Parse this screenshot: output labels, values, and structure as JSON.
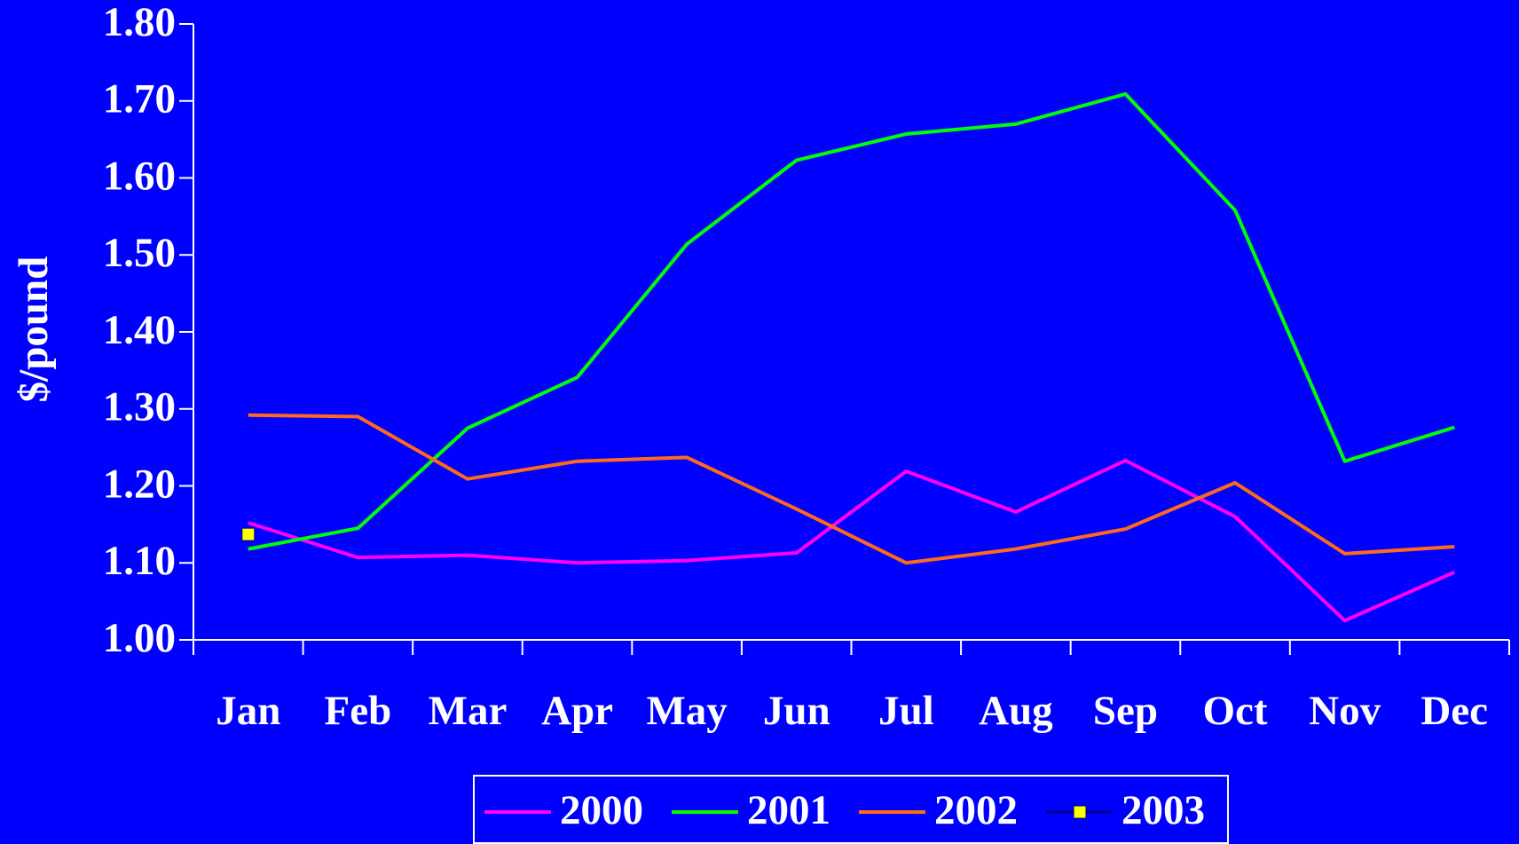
{
  "chart_data": {
    "type": "line",
    "y_label": "$/pound",
    "categories": [
      "Jan",
      "Feb",
      "Mar",
      "Apr",
      "May",
      "Jun",
      "Jul",
      "Aug",
      "Sep",
      "Oct",
      "Nov",
      "Dec"
    ],
    "series": [
      {
        "name": "2000",
        "color": "#ff00ff",
        "values": [
          1.152,
          1.107,
          1.11,
          1.1,
          1.103,
          1.113,
          1.219,
          1.166,
          1.233,
          1.16,
          1.025,
          1.088
        ]
      },
      {
        "name": "2001",
        "color": "#00ff00",
        "values": [
          1.118,
          1.145,
          1.275,
          1.341,
          1.514,
          1.623,
          1.657,
          1.67,
          1.709,
          1.558,
          1.232,
          1.276
        ]
      },
      {
        "name": "2002",
        "color": "#ff6a1a",
        "values": [
          1.292,
          1.29,
          1.209,
          1.232,
          1.237,
          1.17,
          1.1,
          1.118,
          1.144,
          1.204,
          1.112,
          1.121
        ]
      },
      {
        "name": "2003",
        "color": "#ffff00",
        "marker": "square",
        "values": [
          1.137,
          null,
          null,
          null,
          null,
          null,
          null,
          null,
          null,
          null,
          null,
          null
        ]
      }
    ],
    "ylim": [
      1.0,
      1.8
    ],
    "yticks": [
      {
        "value": 1.0,
        "label": "1.00"
      },
      {
        "value": 1.1,
        "label": "1.10"
      },
      {
        "value": 1.2,
        "label": "1.20"
      },
      {
        "value": 1.3,
        "label": "1.30"
      },
      {
        "value": 1.4,
        "label": "1.40"
      },
      {
        "value": 1.5,
        "label": "1.50"
      },
      {
        "value": 1.6,
        "label": "1.60"
      },
      {
        "value": 1.7,
        "label": "1.70"
      },
      {
        "value": 1.8,
        "label": "1.80"
      }
    ],
    "grid": false,
    "legend": "bottom"
  }
}
